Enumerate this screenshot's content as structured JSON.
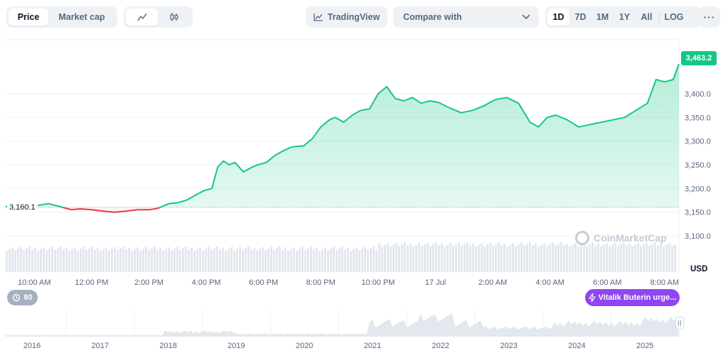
{
  "toolbar": {
    "type_options": [
      "Price",
      "Market cap"
    ],
    "type_active": "Price",
    "style_icons": [
      "line-chart-icon",
      "candlestick-icon"
    ],
    "tradingview_label": "TradingView",
    "compare_label": "Compare with",
    "range_options": [
      "1D",
      "7D",
      "1M",
      "1Y",
      "All"
    ],
    "range_active": "1D",
    "log_label": "LOG",
    "more_label": "···"
  },
  "chart_data": {
    "type": "area",
    "title": "",
    "currency": "USD",
    "current_price_label": "3,463.2",
    "reference_price": 3160.1,
    "reference_label": "3,160.1",
    "ylim": [
      3060,
      3480
    ],
    "y_ticks": [
      {
        "value": 3400,
        "label": "3,400.0"
      },
      {
        "value": 3350,
        "label": "3,350.0"
      },
      {
        "value": 3300,
        "label": "3,300.0"
      },
      {
        "value": 3250,
        "label": "3,250.0"
      },
      {
        "value": 3200,
        "label": "3,200.0"
      },
      {
        "value": 3150,
        "label": "3,150.0"
      },
      {
        "value": 3100,
        "label": "3,100.0"
      }
    ],
    "x_range_hours": [
      0,
      23.5
    ],
    "x_ticks": [
      {
        "hour": 1,
        "label": "10:00 AM"
      },
      {
        "hour": 3,
        "label": "12:00 PM"
      },
      {
        "hour": 5,
        "label": "2:00 PM"
      },
      {
        "hour": 7,
        "label": "4:00 PM"
      },
      {
        "hour": 9,
        "label": "6:00 PM"
      },
      {
        "hour": 11,
        "label": "8:00 PM"
      },
      {
        "hour": 13,
        "label": "10:00 PM"
      },
      {
        "hour": 15,
        "label": "17 Jul"
      },
      {
        "hour": 17,
        "label": "2:00 AM"
      },
      {
        "hour": 19,
        "label": "4:00 AM"
      },
      {
        "hour": 21,
        "label": "6:00 AM"
      },
      {
        "hour": 23,
        "label": "8:00 AM"
      }
    ],
    "series": [
      {
        "name": "Price",
        "x": [
          0,
          0.5,
          1,
          1.5,
          2,
          2.3,
          2.6,
          3,
          3.4,
          3.8,
          4.2,
          4.6,
          5,
          5.3,
          5.7,
          6,
          6.3,
          6.6,
          6.9,
          7.2,
          7.4,
          7.6,
          7.8,
          8.0,
          8.3,
          8.6,
          8.8,
          9.1,
          9.4,
          9.7,
          10,
          10.4,
          10.7,
          11,
          11.3,
          11.5,
          11.8,
          12.1,
          12.4,
          12.7,
          13.0,
          13.3,
          13.6,
          13.9,
          14.2,
          14.5,
          14.8,
          15.1,
          15.5,
          15.9,
          16.3,
          16.7,
          17.1,
          17.5,
          17.9,
          18.3,
          18.6,
          18.9,
          19.2,
          19.6,
          20.0,
          20.4,
          20.8,
          21.2,
          21.6,
          22.0,
          22.4,
          22.7,
          23.0,
          23.3,
          23.5
        ],
        "values": [
          3162,
          3160,
          3163,
          3168,
          3160,
          3155,
          3157,
          3155,
          3152,
          3150,
          3152,
          3155,
          3155,
          3158,
          3168,
          3170,
          3175,
          3185,
          3195,
          3200,
          3245,
          3258,
          3250,
          3255,
          3235,
          3245,
          3250,
          3255,
          3270,
          3280,
          3288,
          3290,
          3305,
          3330,
          3345,
          3350,
          3340,
          3355,
          3365,
          3368,
          3400,
          3415,
          3390,
          3385,
          3392,
          3380,
          3385,
          3382,
          3370,
          3360,
          3365,
          3375,
          3388,
          3392,
          3380,
          3340,
          3330,
          3350,
          3355,
          3345,
          3330,
          3335,
          3340,
          3345,
          3350,
          3365,
          3380,
          3430,
          3425,
          3430,
          3463
        ]
      }
    ],
    "navigator": {
      "year_ticks": [
        "2016",
        "2017",
        "2018",
        "2019",
        "2020",
        "2021",
        "2022",
        "2023",
        "2024",
        "2025"
      ]
    }
  },
  "overlays": {
    "watermark": "CoinMarketCap",
    "events_count": "80",
    "news_label": "Vitalik Buterin urge..."
  }
}
